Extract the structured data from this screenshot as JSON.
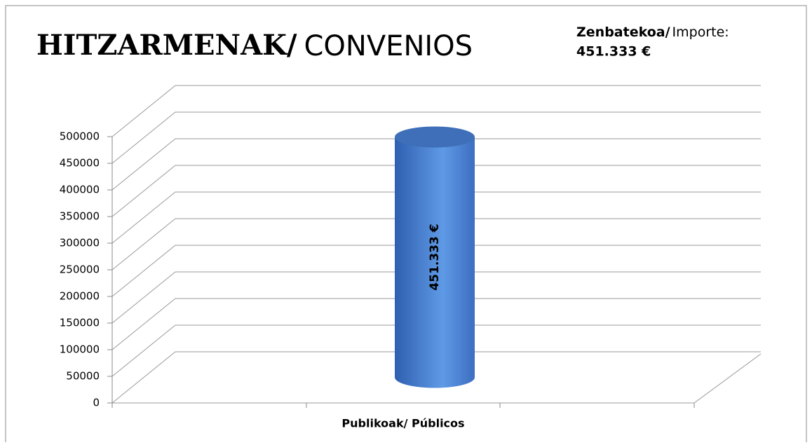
{
  "chart_data": {
    "type": "bar3d",
    "title": [
      "HITZARMENAK/",
      "CONVENIOS"
    ],
    "annotation": [
      "Zenbatekoa/",
      "Importe:",
      "451.333 €"
    ],
    "categories": [
      "Publikoak/ Públicos"
    ],
    "values": [
      451333
    ],
    "value_labels": [
      "451.333 €"
    ],
    "color": "#4a80d4",
    "ylim": [
      0,
      500000
    ],
    "yticks": [
      0,
      50000,
      100000,
      150000,
      200000,
      250000,
      300000,
      350000,
      400000,
      450000,
      500000
    ],
    "grid": true
  }
}
